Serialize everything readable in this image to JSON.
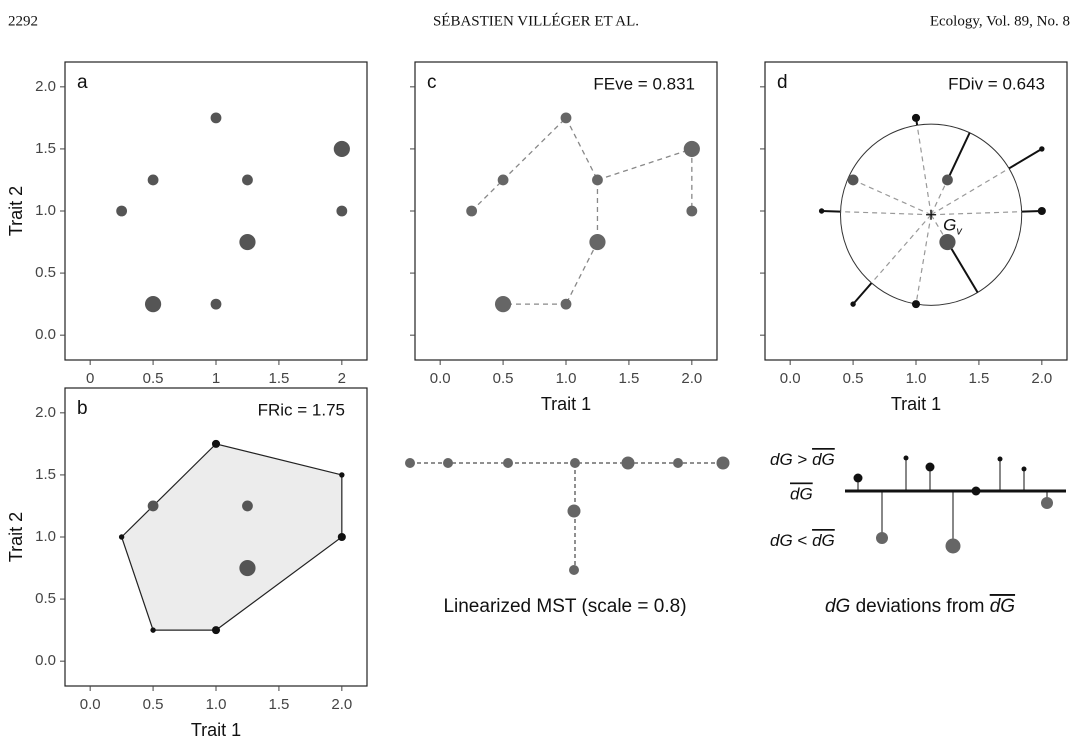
{
  "header": {
    "page": "2292",
    "running_title": "SÉBASTIEN VILLÉGER ET AL.",
    "journal": "Ecology, Vol. 89, No. 8"
  },
  "chart_data": [
    {
      "type": "scatter",
      "panel": "a",
      "x": [
        0.25,
        0.5,
        0.5,
        1.0,
        1.0,
        1.25,
        1.25,
        2.0,
        2.0
      ],
      "y": [
        1.0,
        1.25,
        0.25,
        1.75,
        0.25,
        1.25,
        0.75,
        1.5,
        1.0
      ],
      "sizes": [
        2,
        2,
        3,
        2,
        2,
        2,
        3,
        3,
        2
      ],
      "colors": [
        "#555",
        "#555",
        "#555",
        "#555",
        "#555",
        "#555",
        "#555",
        "#555",
        "#555"
      ],
      "xlim": [
        -0.2,
        2.2
      ],
      "ylim": [
        -0.2,
        2.2
      ],
      "xticks": [
        0,
        0.5,
        1,
        1.5,
        2
      ],
      "yticks": [
        {
          "value": 0,
          "label": "0.0"
        },
        0.5,
        {
          "value": 1,
          "label": "1.0"
        },
        1.5,
        {
          "value": 2,
          "label": "2.0"
        }
      ],
      "ylabel": "Trait 2"
    },
    {
      "type": "hull",
      "panel": "b",
      "annotation": "FRic = 1.75",
      "x": [
        0.25,
        0.5,
        0.5,
        1.0,
        1.0,
        1.25,
        1.25,
        2.0,
        2.0
      ],
      "y": [
        1.0,
        1.25,
        0.25,
        1.75,
        0.25,
        1.25,
        0.75,
        1.5,
        1.0
      ],
      "sizes": [
        1,
        2,
        1,
        1.5,
        1.5,
        2,
        3,
        1,
        1.5
      ],
      "colors": [
        "#111",
        "#555",
        "#111",
        "#111",
        "#111",
        "#555",
        "#555",
        "#111",
        "#111"
      ],
      "hull": [
        0,
        2,
        4,
        8,
        7,
        3
      ],
      "xlim": [
        -0.2,
        2.2
      ],
      "ylim": [
        -0.2,
        2.2
      ],
      "xticks": [
        {
          "value": 0,
          "label": "0.0"
        },
        0.5,
        {
          "value": 1,
          "label": "1.0"
        },
        1.5,
        {
          "value": 2,
          "label": "2.0"
        }
      ],
      "yticks": [
        {
          "value": 0,
          "label": "0.0"
        },
        0.5,
        {
          "value": 1,
          "label": "1.0"
        },
        1.5,
        {
          "value": 2,
          "label": "2.0"
        }
      ],
      "xlabel": "Trait 1",
      "ylabel": "Trait 2"
    },
    {
      "type": "mst",
      "panel": "c",
      "annotation": "FEve = 0.831",
      "x": [
        0.25,
        0.5,
        0.5,
        1.0,
        1.0,
        1.25,
        1.25,
        2.0,
        2.0
      ],
      "y": [
        1.0,
        1.25,
        0.25,
        1.75,
        0.25,
        1.25,
        0.75,
        1.5,
        1.0
      ],
      "sizes": [
        2,
        2,
        3,
        2,
        2,
        2,
        3,
        3,
        2
      ],
      "colors": [
        "#666",
        "#666",
        "#666",
        "#666",
        "#666",
        "#666",
        "#666",
        "#666",
        "#666"
      ],
      "edges": [
        [
          0,
          1
        ],
        [
          1,
          3
        ],
        [
          3,
          5
        ],
        [
          5,
          7
        ],
        [
          7,
          8
        ],
        [
          5,
          6
        ],
        [
          6,
          4
        ],
        [
          4,
          2
        ]
      ],
      "xlim": [
        -0.2,
        2.2
      ],
      "ylim": [
        -0.2,
        2.2
      ],
      "xticks": [
        {
          "value": 0,
          "label": "0.0"
        },
        0.5,
        {
          "value": 1,
          "label": "1.0"
        },
        1.5,
        {
          "value": 2,
          "label": "2.0"
        }
      ],
      "yticks": [
        0,
        0.5,
        1,
        1.5,
        2
      ],
      "xlabel": "Trait 1"
    },
    {
      "type": "divergence",
      "panel": "d",
      "annotation": "FDiv = 0.643",
      "x": [
        0.25,
        0.5,
        0.5,
        1.0,
        1.0,
        1.25,
        1.25,
        2.0,
        2.0
      ],
      "y": [
        1.0,
        1.25,
        0.25,
        1.75,
        0.25,
        1.25,
        0.75,
        1.5,
        1.0
      ],
      "sizes": [
        1,
        2,
        1,
        1.5,
        1.5,
        2,
        3,
        1,
        1.5
      ],
      "colors": [
        "#111",
        "#555",
        "#111",
        "#111",
        "#111",
        "#555",
        "#555",
        "#111",
        "#111"
      ],
      "center": [
        1.12,
        0.97
      ],
      "radius": 0.72,
      "center_label": "G",
      "center_sub": "v",
      "xlim": [
        -0.2,
        2.2
      ],
      "ylim": [
        -0.2,
        2.2
      ],
      "xticks": [
        {
          "value": 0,
          "label": "0.0"
        },
        0.5,
        {
          "value": 1,
          "label": "1.0"
        },
        1.5,
        {
          "value": 2,
          "label": "2.0"
        }
      ],
      "yticks": [
        0,
        0.5,
        1,
        1.5,
        2
      ],
      "xlabel": "Trait 1"
    }
  ],
  "mst_caption": "Linearized MST (scale = 0.8)",
  "dg": {
    "above": [
      "dG",
      " > ",
      "dG"
    ],
    "mean": "dG",
    "below": [
      "dG",
      " < ",
      "dG"
    ],
    "caption": [
      "dG",
      " deviations from ",
      "dG"
    ]
  }
}
